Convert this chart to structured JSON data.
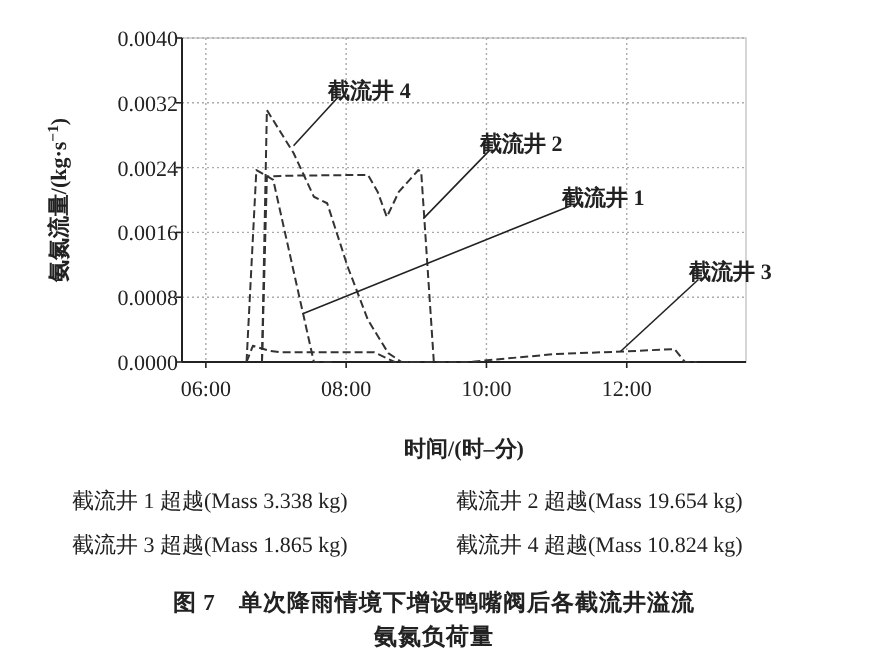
{
  "chart_data": {
    "type": "line",
    "title": "图 7　单次降雨情境下增设鸭嘴阀后各截流井溢流氨氮负荷量",
    "xlabel": "时间/(时–分)",
    "ylabel": "氨氮流量/(kg·s$^{−1}$)",
    "xlim": [
      5.66,
      13.7
    ],
    "ylim": [
      0,
      0.004
    ],
    "xticks": [
      {
        "value": 6,
        "label": "06:00"
      },
      {
        "value": 8,
        "label": "08:00"
      },
      {
        "value": 10,
        "label": "10:00"
      },
      {
        "value": 12,
        "label": "12:00"
      }
    ],
    "yticks": [
      {
        "value": 0,
        "label": "0.0000"
      },
      {
        "value": 0.0008,
        "label": "0.0008"
      },
      {
        "value": 0.0016,
        "label": "0.0016"
      },
      {
        "value": 0.0024,
        "label": "0.0024"
      },
      {
        "value": 0.0032,
        "label": "0.0032"
      },
      {
        "value": 0.004,
        "label": "0.0040"
      }
    ],
    "grid": true,
    "line_style": "dashed",
    "marker": "none",
    "series": [
      {
        "color": "#333333",
        "x": [
          6.58,
          6.72,
          6.96,
          7.54,
          7.8
        ],
        "values": [
          0,
          0.00237,
          0.00225,
          0,
          0
        ]
      },
      {
        "color": "#333333",
        "x": [
          6.8,
          6.87,
          7.2,
          8.31,
          8.45,
          8.58,
          8.75,
          9.03,
          9.07,
          9.25,
          9.5
        ],
        "values": [
          0,
          0.00229,
          0.0023,
          0.00231,
          0.0021,
          0.00179,
          0.0021,
          0.00237,
          0.00235,
          0,
          0
        ]
      },
      {
        "color": "#333333",
        "x": [
          6.58,
          6.67,
          6.9,
          7.06,
          8.4,
          8.69,
          9.75,
          11.0,
          11.96,
          12.68,
          12.83,
          13.0
        ],
        "values": [
          0,
          0.0002,
          0.00014,
          0.00012,
          0.00012,
          0,
          0,
          0.0001,
          0.00013,
          0.00016,
          0,
          0
        ]
      },
      {
        "color": "#333333",
        "x": [
          6.8,
          6.87,
          7.25,
          7.54,
          7.73,
          8.02,
          8.31,
          8.6,
          8.79,
          9.0
        ],
        "values": [
          0,
          0.00311,
          0.00258,
          0.00204,
          0.00196,
          0.00118,
          0.00052,
          0.00011,
          0,
          0
        ]
      }
    ],
    "annotations": [
      {
        "text": "截流井 4",
        "x": 7.25,
        "y": 0.00267
      },
      {
        "text": "截流井 2",
        "x": 9.1,
        "y": 0.00177
      },
      {
        "text": "截流井 1",
        "x": 7.39,
        "y": 0.0006
      },
      {
        "text": "截流井 3",
        "x": 11.91,
        "y": 0.00013
      },
      "截流井 1 超越(Mass 3.338 kg)",
      "截流井 2 超越(Mass 19.654 kg)",
      "截流井 3 超越(Mass 1.865 kg)",
      "截流井 4 超越(Mass 10.824 kg)"
    ]
  }
}
